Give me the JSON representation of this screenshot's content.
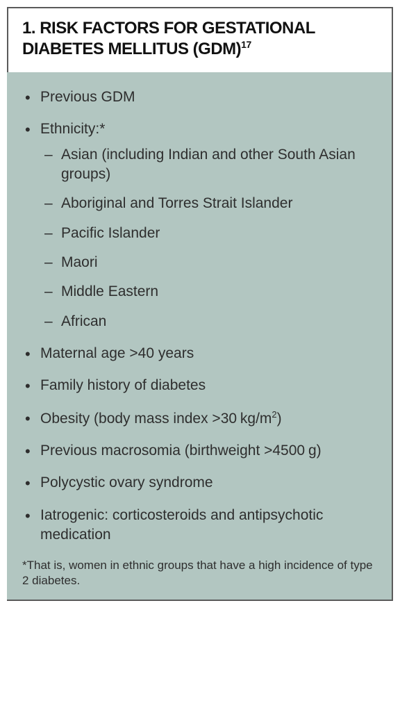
{
  "title": {
    "number": "1.",
    "text": "RISK FACTORS FOR GESTATIONAL DIABETES MELLITUS (GDM)",
    "ref": "17"
  },
  "items": [
    {
      "text": "Previous GDM"
    },
    {
      "text": "Ethnicity:*",
      "sub": [
        "Asian (including Indian and other South Asian groups)",
        "Aboriginal and Torres Strait Islander",
        "Pacific Islander",
        "Maori",
        "Middle Eastern",
        "African"
      ]
    },
    {
      "text": "Maternal age >40 years"
    },
    {
      "text": "Family history of diabetes"
    },
    {
      "html": "Obesity (body mass index >30<span class=\"thinsp\"> </span>kg/m<span class=\"sup2\">2</span>)"
    },
    {
      "html": "Previous macrosomia (birthweight >4500<span class=\"thinsp\"> </span>g)"
    },
    {
      "text": "Polycystic ovary syndrome"
    },
    {
      "text": "Iatrogenic: corticosteroids and antipsychotic medication"
    }
  ],
  "footnote": "*That is, women in ethnic groups that have a high incidence of type 2 diabetes.",
  "colors": {
    "body_bg": "#b2c6c1",
    "border": "#5a5a5a",
    "text": "#2e2e2e",
    "title": "#111111"
  },
  "typography": {
    "title_fontsize": 24,
    "body_fontsize": 21,
    "footnote_fontsize": 17
  }
}
